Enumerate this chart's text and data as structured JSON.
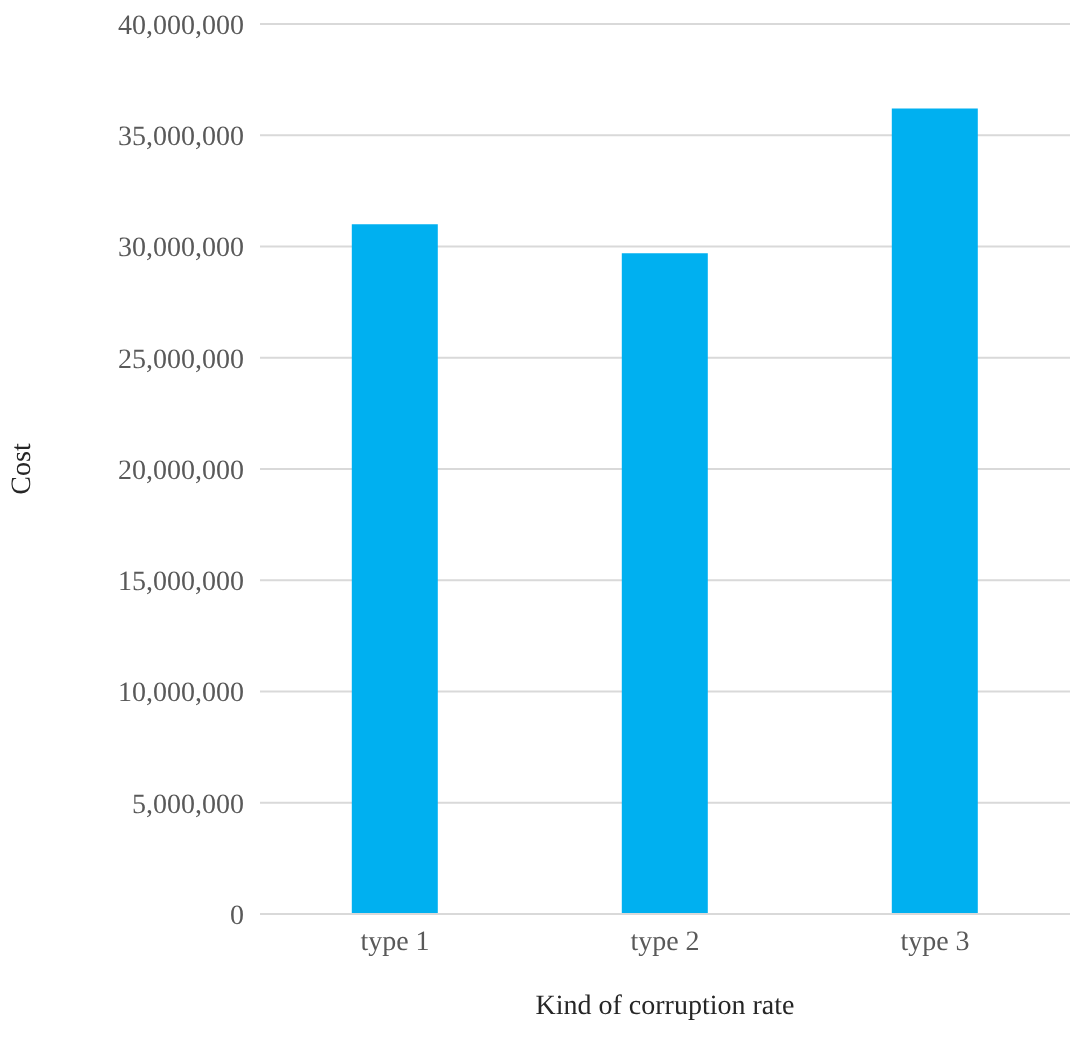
{
  "chart_data": {
    "type": "bar",
    "xlabel": "Kind of corruption rate",
    "ylabel": "Cost",
    "categories": [
      "type 1",
      "type 2",
      "type 3"
    ],
    "values": [
      31000000,
      29700000,
      36200000
    ],
    "color": "#00b0f0",
    "ylim": [
      0,
      40000000
    ],
    "yticks": [
      0,
      {
        "value": 5000000,
        "label": "5,000,000"
      },
      {
        "value": 10000000,
        "label": "10,000,000"
      },
      {
        "value": 15000000,
        "label": "15,000,000"
      },
      {
        "value": 20000000,
        "label": "20,000,000"
      },
      {
        "value": 25000000,
        "label": "25,000,000"
      },
      {
        "value": 30000000,
        "label": "30,000,000"
      },
      {
        "value": 35000000,
        "label": "35,000,000"
      },
      {
        "value": 40000000,
        "label": "40,000,000"
      }
    ],
    "grid": "y"
  }
}
